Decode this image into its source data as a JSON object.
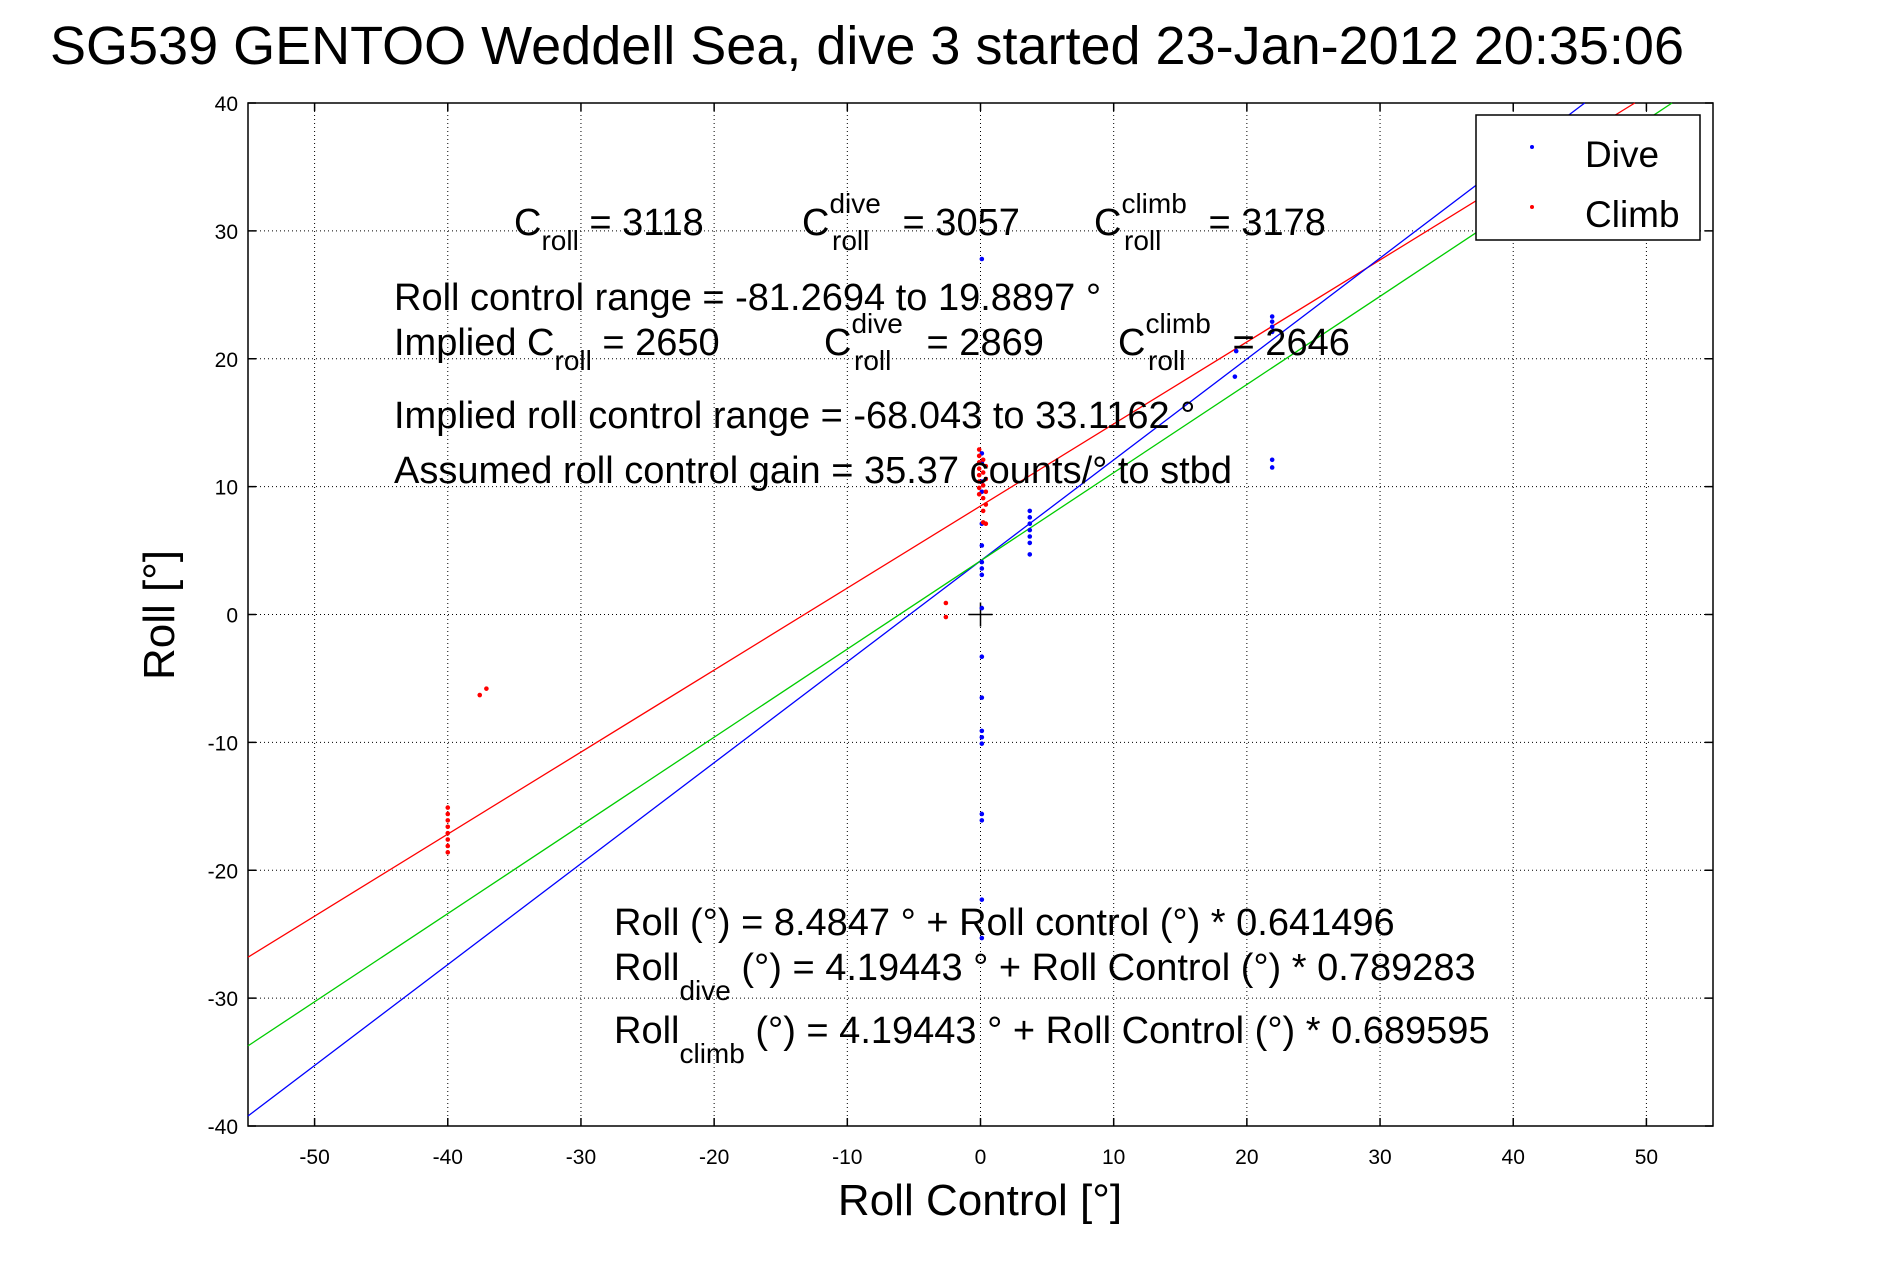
{
  "chart_data": {
    "type": "scatter",
    "title": "SG539 GENTOO Weddell Sea, dive 3 started 23-Jan-2012 20:35:06",
    "xlabel": "Roll Control [°]",
    "ylabel": "Roll [°]",
    "xlim": [
      -55,
      55
    ],
    "ylim": [
      -40,
      40
    ],
    "x_ticks": [
      "-50",
      "-40",
      "-30",
      "-20",
      "-10",
      "0",
      "10",
      "20",
      "30",
      "40",
      "50"
    ],
    "y_ticks": [
      "40",
      "30",
      "20",
      "10",
      "0",
      "-10",
      "-20",
      "-30",
      "-40"
    ],
    "grid": true,
    "legend_position": "top-right",
    "colors": {
      "dive": "#0000ff",
      "climb": "#ff0000",
      "fit_all": "#00cc00"
    },
    "series": [
      {
        "name": "Dive",
        "points": [
          [
            0.1,
            27.8
          ],
          [
            0.1,
            12.6
          ],
          [
            0.1,
            11.9
          ],
          [
            0.1,
            10.4
          ],
          [
            0.1,
            9.6
          ],
          [
            0.1,
            7.1
          ],
          [
            0.1,
            5.4
          ],
          [
            0.1,
            4.1
          ],
          [
            0.1,
            3.6
          ],
          [
            0.1,
            3.1
          ],
          [
            0.1,
            0.5
          ],
          [
            0.1,
            -3.3
          ],
          [
            0.1,
            -6.5
          ],
          [
            0.1,
            -9.1
          ],
          [
            0.1,
            -9.6
          ],
          [
            0.1,
            -10.1
          ],
          [
            0.1,
            -15.6
          ],
          [
            0.1,
            -16.1
          ],
          [
            0.1,
            -22.3
          ],
          [
            0.1,
            -25.3
          ],
          [
            3.7,
            8.1
          ],
          [
            3.7,
            7.6
          ],
          [
            3.7,
            7.1
          ],
          [
            3.7,
            6.6
          ],
          [
            3.7,
            6.1
          ],
          [
            3.7,
            5.6
          ],
          [
            3.7,
            4.7
          ],
          [
            19.1,
            18.6
          ],
          [
            19.2,
            20.6
          ],
          [
            21.9,
            23.3
          ],
          [
            21.9,
            22.9
          ],
          [
            21.9,
            22.5
          ],
          [
            21.9,
            22.1
          ],
          [
            21.9,
            12.1
          ],
          [
            21.9,
            11.5
          ]
        ]
      },
      {
        "name": "Climb",
        "points": [
          [
            -40,
            -15.1
          ],
          [
            -40,
            -15.6
          ],
          [
            -40,
            -16.1
          ],
          [
            -40,
            -16.6
          ],
          [
            -40,
            -17.1
          ],
          [
            -40,
            -17.6
          ],
          [
            -40,
            -18.1
          ],
          [
            -40,
            -18.6
          ],
          [
            -37.6,
            -6.3
          ],
          [
            -37.1,
            -5.8
          ],
          [
            -2.6,
            0.9
          ],
          [
            -2.6,
            -0.2
          ],
          [
            -0.1,
            12.9
          ],
          [
            -0.1,
            12.4
          ],
          [
            -0.1,
            11.9
          ],
          [
            -0.1,
            11.4
          ],
          [
            -0.1,
            10.9
          ],
          [
            -0.1,
            10.4
          ],
          [
            -0.1,
            9.9
          ],
          [
            -0.1,
            9.4
          ],
          [
            0.2,
            12.1
          ],
          [
            0.2,
            11.1
          ],
          [
            0.2,
            10.1
          ],
          [
            0.2,
            9.1
          ],
          [
            0.2,
            8.1
          ],
          [
            0.4,
            11.6
          ],
          [
            0.4,
            10.6
          ],
          [
            0.4,
            9.6
          ],
          [
            0.4,
            8.6
          ],
          [
            0.2,
            7.2
          ],
          [
            0.4,
            7.1
          ]
        ]
      }
    ],
    "fit_lines": [
      {
        "color": "#ff0000",
        "intercept": 8.4847,
        "slope": 0.641496
      },
      {
        "color": "#0000ff",
        "intercept": 4.19443,
        "slope": 0.789283
      },
      {
        "color": "#00cc00",
        "intercept": 4.19443,
        "slope": 0.689595
      }
    ],
    "annotations": {
      "c_roll": {
        "base": "C",
        "sub": "roll",
        "value": " = 3118"
      },
      "c_roll_dive": {
        "base": "C",
        "sup": "dive",
        "sub": "roll",
        "value": " = 3057"
      },
      "c_roll_climb": {
        "base": "C",
        "sup": "climb",
        "sub": "roll",
        "value": " = 3178"
      },
      "range_line": "Roll control range = -81.2694 to 19.8897 °",
      "implied_prefix": "Implied C",
      "implied_c_roll_sub": "roll",
      "implied_c_roll_value": " = 2650",
      "implied_dive": {
        "base": "C",
        "sup": "dive",
        "sub": "roll",
        "value": " = 2869"
      },
      "implied_climb": {
        "base": "C",
        "sup": "climb",
        "sub": "roll",
        "value": " = 2646"
      },
      "implied_range_line": "Implied roll control range = -68.043 to 33.1162 °",
      "gain_line": "Assumed roll control gain = 35.37 counts/° to stbd",
      "eq_all": "Roll (°) = 8.4847 ° + Roll control (°) * 0.641496",
      "eq_dive_base": "Roll",
      "eq_dive_sub": "dive",
      "eq_dive_rest": " (°) = 4.19443 ° + Roll Control (°) * 0.789283",
      "eq_climb_base": "Roll",
      "eq_climb_sub": "climb",
      "eq_climb_rest": " (°) = 4.19443 ° + Roll Control (°) * 0.689595"
    }
  }
}
